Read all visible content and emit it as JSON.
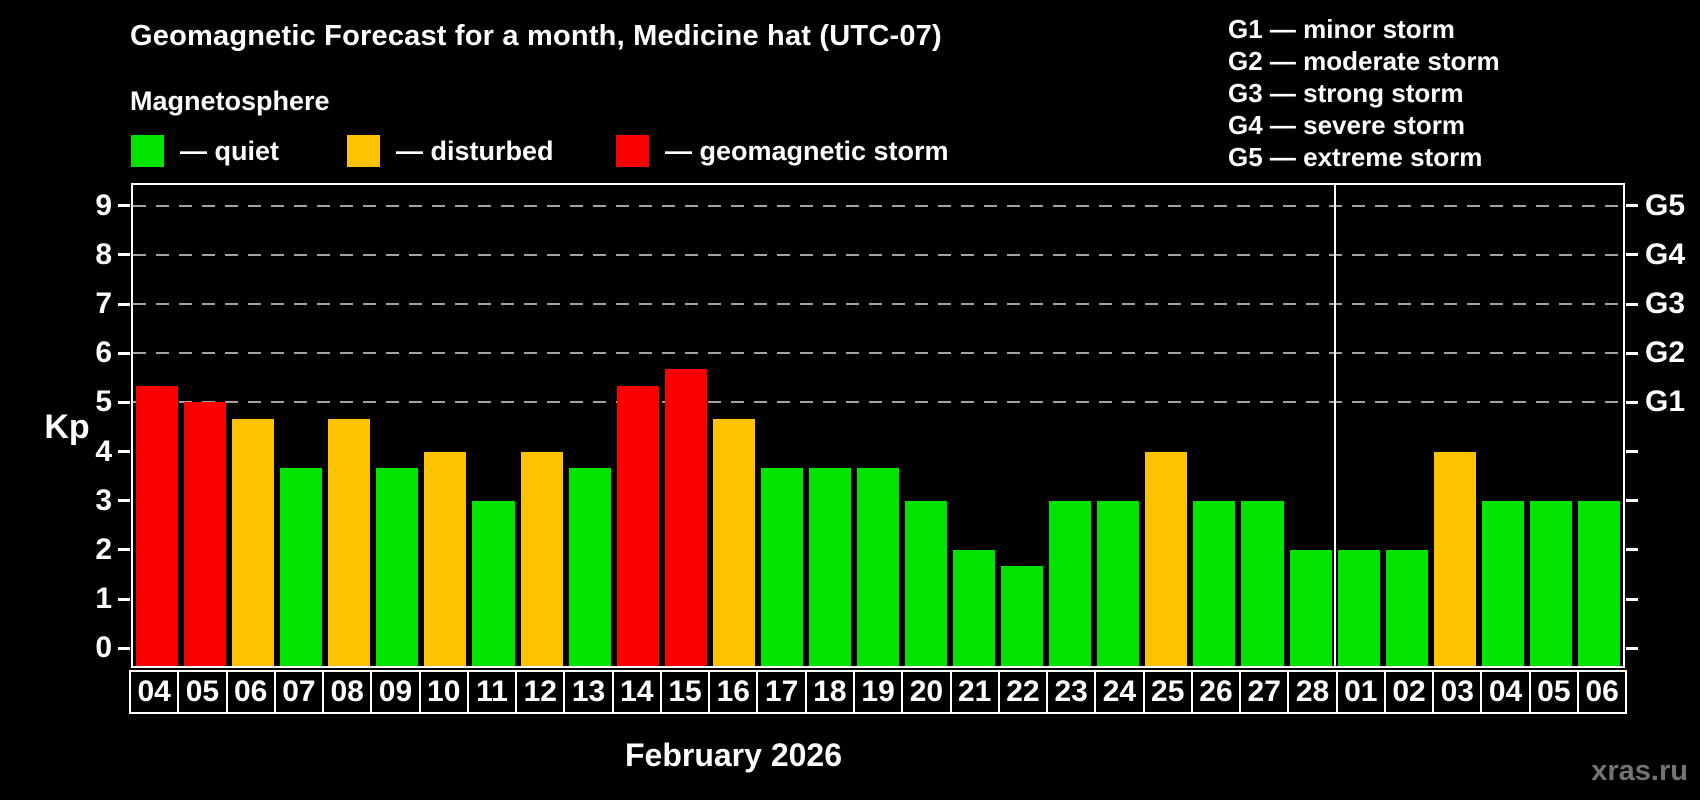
{
  "header": {
    "title": "Geomagnetic Forecast for a month, Medicine hat (UTC-07)",
    "subtitle": "Magnetosphere"
  },
  "legend": {
    "items": [
      {
        "name": "quiet",
        "label": "— quiet",
        "color": "#00e400"
      },
      {
        "name": "disturbed",
        "label": "— disturbed",
        "color": "#ffc200"
      },
      {
        "name": "storm",
        "label": "— geomagnetic storm",
        "color": "#fb0000"
      }
    ]
  },
  "g_legend": {
    "items": [
      "G1 — minor storm",
      "G2 — moderate storm",
      "G3 — strong storm",
      "G4 — severe storm",
      "G5 — extreme storm"
    ]
  },
  "chart_data": {
    "type": "bar",
    "title": "Geomagnetic Forecast for a month, Medicine hat (UTC-07)",
    "xlabel": "February 2026",
    "ylabel": "Kp",
    "ylim": [
      0,
      9
    ],
    "yticks": [
      0,
      1,
      2,
      3,
      4,
      5,
      6,
      7,
      8,
      9
    ],
    "gridlines": [
      5,
      6,
      7,
      8,
      9
    ],
    "grid_style": "dashed horizontal gray lines at G-storm levels only",
    "legend_position": "top-left",
    "right_axis_labels": [
      {
        "value": 5,
        "label": "G1"
      },
      {
        "value": 6,
        "label": "G2"
      },
      {
        "value": 7,
        "label": "G3"
      },
      {
        "value": 8,
        "label": "G4"
      },
      {
        "value": 9,
        "label": "G5"
      }
    ],
    "month_divider_after_index": 24,
    "bars": [
      {
        "day": "04",
        "value": 5.33,
        "status": "storm"
      },
      {
        "day": "05",
        "value": 5.0,
        "status": "storm"
      },
      {
        "day": "06",
        "value": 4.67,
        "status": "disturbed"
      },
      {
        "day": "07",
        "value": 3.67,
        "status": "quiet"
      },
      {
        "day": "08",
        "value": 4.67,
        "status": "disturbed"
      },
      {
        "day": "09",
        "value": 3.67,
        "status": "quiet"
      },
      {
        "day": "10",
        "value": 4.0,
        "status": "disturbed"
      },
      {
        "day": "11",
        "value": 3.0,
        "status": "quiet"
      },
      {
        "day": "12",
        "value": 4.0,
        "status": "disturbed"
      },
      {
        "day": "13",
        "value": 3.67,
        "status": "quiet"
      },
      {
        "day": "14",
        "value": 5.33,
        "status": "storm"
      },
      {
        "day": "15",
        "value": 5.67,
        "status": "storm"
      },
      {
        "day": "16",
        "value": 4.67,
        "status": "disturbed"
      },
      {
        "day": "17",
        "value": 3.67,
        "status": "quiet"
      },
      {
        "day": "18",
        "value": 3.67,
        "status": "quiet"
      },
      {
        "day": "19",
        "value": 3.67,
        "status": "quiet"
      },
      {
        "day": "20",
        "value": 3.0,
        "status": "quiet"
      },
      {
        "day": "21",
        "value": 2.0,
        "status": "quiet"
      },
      {
        "day": "22",
        "value": 1.67,
        "status": "quiet"
      },
      {
        "day": "23",
        "value": 3.0,
        "status": "quiet"
      },
      {
        "day": "24",
        "value": 3.0,
        "status": "quiet"
      },
      {
        "day": "25",
        "value": 4.0,
        "status": "disturbed"
      },
      {
        "day": "26",
        "value": 3.0,
        "status": "quiet"
      },
      {
        "day": "27",
        "value": 3.0,
        "status": "quiet"
      },
      {
        "day": "28",
        "value": 2.0,
        "status": "quiet"
      },
      {
        "day": "01",
        "value": 2.0,
        "status": "quiet"
      },
      {
        "day": "02",
        "value": 2.0,
        "status": "quiet"
      },
      {
        "day": "03",
        "value": 4.0,
        "status": "disturbed"
      },
      {
        "day": "04",
        "value": 3.0,
        "status": "quiet"
      },
      {
        "day": "05",
        "value": 3.0,
        "status": "quiet"
      },
      {
        "day": "06",
        "value": 3.0,
        "status": "quiet"
      }
    ]
  },
  "footer": {
    "month_label": "February 2026",
    "watermark": "xras.ru"
  }
}
